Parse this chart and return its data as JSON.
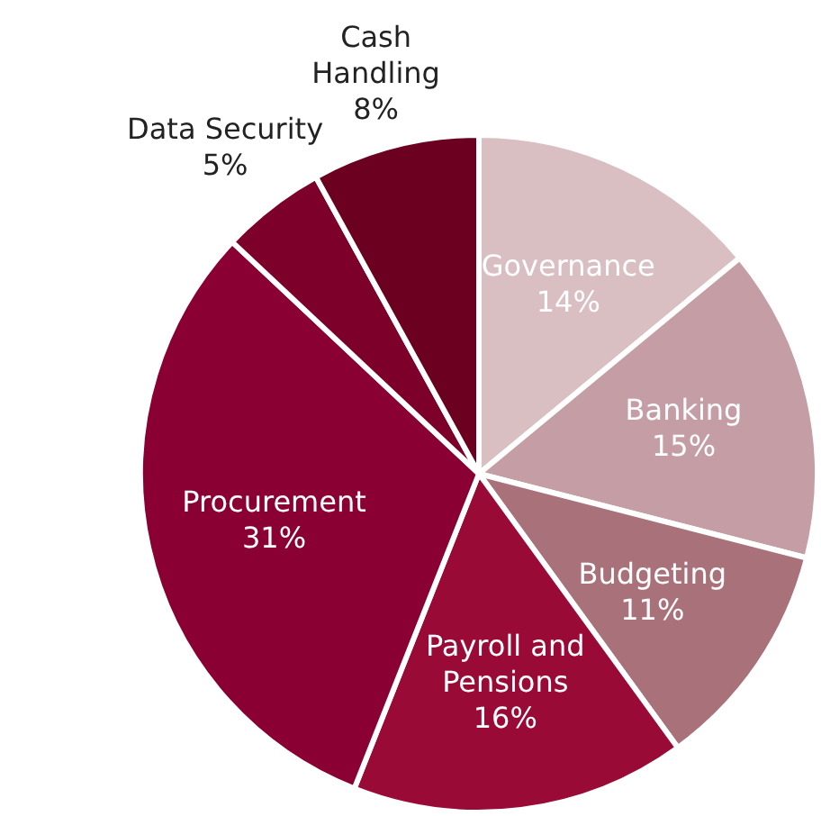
{
  "chart_data": {
    "type": "pie",
    "categories": [
      "Governance",
      "Banking",
      "Budgeting",
      "Payroll and Pensions",
      "Procurement",
      "Data Security",
      "Cash Handling"
    ],
    "values": [
      14,
      15,
      11,
      16,
      31,
      5,
      8
    ],
    "colors": [
      "#d9bec2",
      "#c49ea4",
      "#a9727b",
      "#9a0a36",
      "#8b0032",
      "#7c0029",
      "#6b0021"
    ],
    "value_labels": [
      "14%",
      "15%",
      "11%",
      "16%",
      "31%",
      "5%",
      "8%"
    ]
  }
}
